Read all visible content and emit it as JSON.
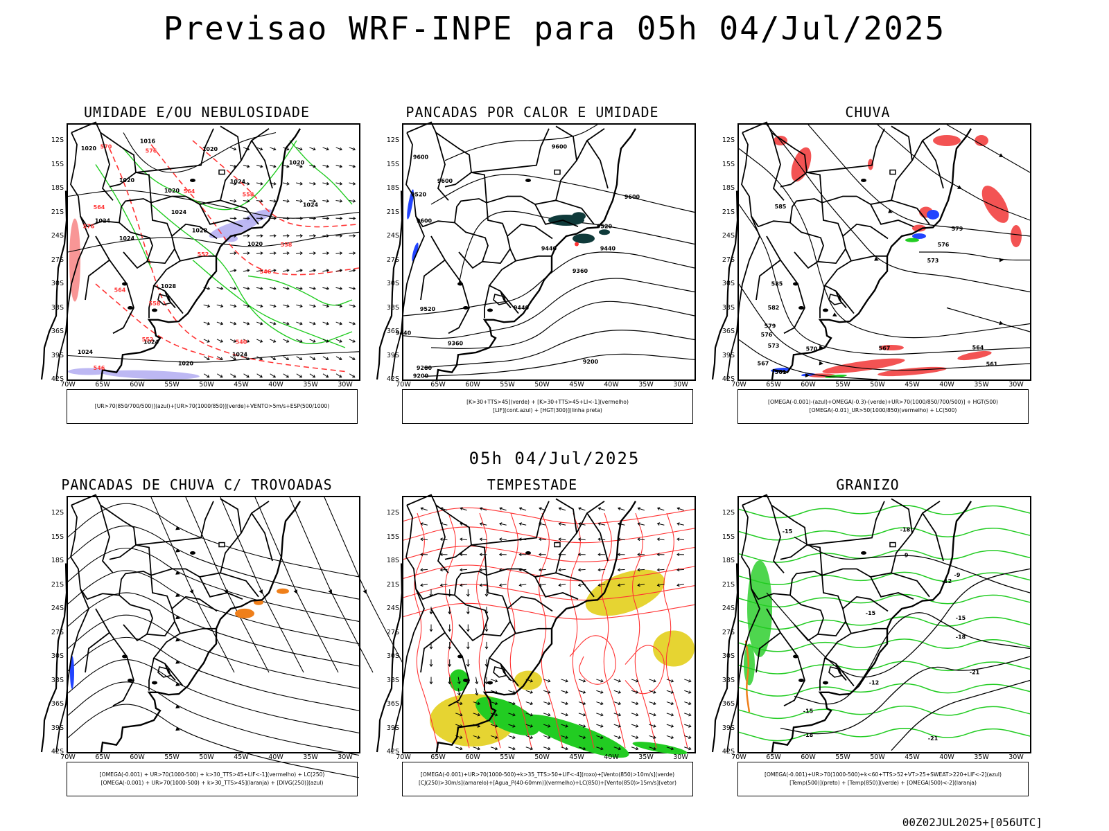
{
  "title": "Previsao WRF-INPE  para 05h 04/Jul/2025",
  "subtitle": "05h 04/Jul/2025",
  "run_stamp": "00Z02JUL2025+[056UTC]",
  "colors": {
    "land": "#000000",
    "contour": "#000000",
    "green": "#22cc22",
    "red": "#ff3333",
    "blue": "#2244ff",
    "lavender": "#b9b4f2",
    "darkteal": "#0f3a3a",
    "orange": "#ef7f1a",
    "yellow": "#e6d432",
    "rain": "#f24040"
  },
  "chart_data": [
    {
      "type": "contour-map",
      "id": "umidade",
      "title": "UMIDADE E/OU NEBULOSIDADE",
      "lat_ticks": [
        "12S",
        "15S",
        "18S",
        "21S",
        "24S",
        "27S",
        "30S",
        "33S",
        "36S",
        "39S",
        "42S"
      ],
      "lon_ticks": [
        "70W",
        "65W",
        "60W",
        "55W",
        "50W",
        "45W",
        "40W",
        "35W",
        "30W"
      ],
      "legend": [
        "[UR>70(850/700/500)](azul)+[UR>70(1000/850)](verde)+VENTO>5m/s+ESP(500/1000)"
      ],
      "contour_labels": [
        {
          "text": "1020",
          "lon": -67,
          "lat": -13.2
        },
        {
          "text": "1016",
          "lon": -58.5,
          "lat": -12.3
        },
        {
          "text": "1020",
          "lon": -49.5,
          "lat": -13.3
        },
        {
          "text": "1020",
          "lon": -37,
          "lat": -15
        },
        {
          "text": "1020",
          "lon": -61.5,
          "lat": -17.2
        },
        {
          "text": "1024",
          "lon": -45.5,
          "lat": -17.4
        },
        {
          "text": "1020",
          "lon": -55,
          "lat": -18.5
        },
        {
          "text": "1024",
          "lon": -65,
          "lat": -22.3
        },
        {
          "text": "1024",
          "lon": -54,
          "lat": -21.2
        },
        {
          "text": "1024",
          "lon": -61.5,
          "lat": -24.5
        },
        {
          "text": "1028",
          "lon": -51,
          "lat": -23.5
        },
        {
          "text": "1020",
          "lon": -43,
          "lat": -25.2
        },
        {
          "text": "1024",
          "lon": -35,
          "lat": -20.3
        },
        {
          "text": "1028",
          "lon": -55.5,
          "lat": -30.5
        },
        {
          "text": "1024",
          "lon": -58,
          "lat": -37.5
        },
        {
          "text": "1024",
          "lon": -67.5,
          "lat": -38.8
        },
        {
          "text": "1020",
          "lon": -53,
          "lat": -40.2
        },
        {
          "text": "1024",
          "lon": -45.2,
          "lat": -39.1
        },
        {
          "text": "570",
          "lon": -64.5,
          "lat": -13.0
        },
        {
          "text": "576",
          "lon": -58,
          "lat": -13.5
        },
        {
          "text": "564",
          "lon": -65.5,
          "lat": -20.6
        },
        {
          "text": "576",
          "lon": -67,
          "lat": -23
        },
        {
          "text": "564",
          "lon": -52.5,
          "lat": -18.6
        },
        {
          "text": "558",
          "lon": -44,
          "lat": -19
        },
        {
          "text": "552",
          "lon": -50.5,
          "lat": -26.5
        },
        {
          "text": "558",
          "lon": -38.5,
          "lat": -25.3
        },
        {
          "text": "546",
          "lon": -41.5,
          "lat": -28.7
        },
        {
          "text": "564",
          "lon": -62.5,
          "lat": -31
        },
        {
          "text": "558",
          "lon": -57.5,
          "lat": -32.7
        },
        {
          "text": "552",
          "lon": -58.5,
          "lat": -37.2
        },
        {
          "text": "540",
          "lon": -45,
          "lat": -37.5
        },
        {
          "text": "546",
          "lon": -65.5,
          "lat": -40.8
        }
      ]
    },
    {
      "type": "contour-map",
      "id": "pancadas-calor",
      "title": "PANCADAS POR CALOR E UMIDADE",
      "lat_ticks": [
        "12S",
        "15S",
        "18S",
        "21S",
        "24S",
        "27S",
        "30S",
        "33S",
        "36S",
        "39S",
        "42S"
      ],
      "lon_ticks": [
        "70W",
        "65W",
        "60W",
        "55W",
        "50W",
        "45W",
        "40W",
        "35W",
        "30W"
      ],
      "legend": [
        "[K>30+TTS>45](verde) + [K>30+TTS>45+LI<-1](vermelho)",
        "[LIF](cont.azul) + [HGT(300)](linha preta)"
      ],
      "contour_labels": [
        {
          "text": "9600",
          "lon": -67.5,
          "lat": -14.3
        },
        {
          "text": "9600",
          "lon": -47.5,
          "lat": -13
        },
        {
          "text": "9600",
          "lon": -64,
          "lat": -17.3
        },
        {
          "text": "9520",
          "lon": -67.8,
          "lat": -19
        },
        {
          "text": "9600",
          "lon": -37,
          "lat": -19.3
        },
        {
          "text": "9600",
          "lon": -67,
          "lat": -22.3
        },
        {
          "text": "9520",
          "lon": -41,
          "lat": -23
        },
        {
          "text": "9440",
          "lon": -49,
          "lat": -25.8
        },
        {
          "text": "9440",
          "lon": -40.5,
          "lat": -25.8
        },
        {
          "text": "9360",
          "lon": -44.5,
          "lat": -28.6
        },
        {
          "text": "9520",
          "lon": -66.5,
          "lat": -33.4
        },
        {
          "text": "9440",
          "lon": -53,
          "lat": -33.2
        },
        {
          "text": "9440",
          "lon": -70,
          "lat": -36.4
        },
        {
          "text": "9360",
          "lon": -62.5,
          "lat": -37.7
        },
        {
          "text": "9280",
          "lon": -67,
          "lat": -40.8
        },
        {
          "text": "9200",
          "lon": -67.5,
          "lat": -41.8
        },
        {
          "text": "9200",
          "lon": -43,
          "lat": -40
        }
      ]
    },
    {
      "type": "contour-map",
      "id": "chuva",
      "title": "CHUVA",
      "lat_ticks": [
        "12S",
        "15S",
        "18S",
        "21S",
        "24S",
        "27S",
        "30S",
        "33S",
        "36S",
        "39S",
        "42S"
      ],
      "lon_ticks": [
        "70W",
        "65W",
        "60W",
        "55W",
        "50W",
        "45W",
        "40W",
        "35W",
        "30W"
      ],
      "legend": [
        "[OMEGA(-0.001)-(azul)+OMEGA(-0.3)-(verde)+UR>70(1000/850/700/500)] + HGT(500)",
        "[OMEGA(-0.01)_UR>50(1000/850)(vermelho) + LC(500)"
      ],
      "contour_labels": [
        {
          "text": "585",
          "lon": -64,
          "lat": -20.5
        },
        {
          "text": "579",
          "lon": -38.5,
          "lat": -23.3
        },
        {
          "text": "576",
          "lon": -40.5,
          "lat": -25.3
        },
        {
          "text": "573",
          "lon": -42,
          "lat": -27.3
        },
        {
          "text": "585",
          "lon": -64.5,
          "lat": -30.2
        },
        {
          "text": "582",
          "lon": -65,
          "lat": -33.2
        },
        {
          "text": "579",
          "lon": -65.5,
          "lat": -35.5
        },
        {
          "text": "576",
          "lon": -66,
          "lat": -36.6
        },
        {
          "text": "573",
          "lon": -65,
          "lat": -38
        },
        {
          "text": "570",
          "lon": -59.5,
          "lat": -38.4
        },
        {
          "text": "567",
          "lon": -66.5,
          "lat": -40.2
        },
        {
          "text": "564",
          "lon": -35.5,
          "lat": -38.2
        },
        {
          "text": "561",
          "lon": -64,
          "lat": -41.3
        },
        {
          "text": "561",
          "lon": -33.5,
          "lat": -40.3
        },
        {
          "text": "567",
          "lon": -49,
          "lat": -38.3
        }
      ]
    },
    {
      "type": "contour-map",
      "id": "pancadas-trovoadas",
      "title": "PANCADAS DE CHUVA C/ TROVOADAS",
      "lat_ticks": [
        "12S",
        "15S",
        "18S",
        "21S",
        "24S",
        "27S",
        "30S",
        "33S",
        "36S",
        "39S",
        "42S"
      ],
      "lon_ticks": [
        "70W",
        "65W",
        "60W",
        "55W",
        "50W",
        "45W",
        "40W",
        "35W",
        "30W"
      ],
      "legend": [
        "[OMEGA(-0.001) + UR>70(1000-500) + k>30_TTS>45+LIF<-1](vermelho) + LC(250)",
        "[OMEGA(-0.001) + UR>70(1000-500) + k>30_TTS>45](laranja) + [DIVG(250)](azul)"
      ],
      "contour_labels": []
    },
    {
      "type": "contour-map",
      "id": "tempestade",
      "title": "TEMPESTADE",
      "lat_ticks": [
        "12S",
        "15S",
        "18S",
        "21S",
        "24S",
        "27S",
        "30S",
        "33S",
        "36S",
        "39S",
        "42S"
      ],
      "lon_ticks": [
        "70W",
        "65W",
        "60W",
        "55W",
        "50W",
        "45W",
        "40W",
        "35W",
        "30W"
      ],
      "legend": [
        "[OMEGA(-0.001)+UR>70(1000-500)+k>35_TTS>50+LIF<-4](roxo)+[Vento(850)>10m/s](verde)",
        "[CJ(250)>30m/s](amarelo)+[Agua_P(40-60mm)](vermelho)+LC(850)+[Vento(850)>15m/s](vetor)"
      ],
      "contour_labels": []
    },
    {
      "type": "contour-map",
      "id": "granizo",
      "title": "GRANIZO",
      "lat_ticks": [
        "12S",
        "15S",
        "18S",
        "21S",
        "24S",
        "27S",
        "30S",
        "33S",
        "36S",
        "39S",
        "42S"
      ],
      "lon_ticks": [
        "70W",
        "65W",
        "60W",
        "55W",
        "50W",
        "45W",
        "40W",
        "35W",
        "30W"
      ],
      "legend": [
        "[OMEGA(-0.001)+UR>70(1000-500)+k<60+TTS>52+VT>25+SWEAT>220+LIF<-2](azul)",
        "[Temp(500)](preto) + [Temp(850)](verde) + [OMEGA(500)<-2](laranja)"
      ],
      "contour_labels": [
        {
          "text": "-9",
          "lon": -46,
          "lat": -17.5
        },
        {
          "text": "-9",
          "lon": -38.5,
          "lat": -20
        },
        {
          "text": "-12",
          "lon": -40,
          "lat": -20.8
        },
        {
          "text": "-15",
          "lon": -51,
          "lat": -24.8
        },
        {
          "text": "-15",
          "lon": -38,
          "lat": -25.4
        },
        {
          "text": "-18",
          "lon": -38,
          "lat": -27.8
        },
        {
          "text": "-21",
          "lon": -36,
          "lat": -32.2
        },
        {
          "text": "-12",
          "lon": -50.5,
          "lat": -33.5
        },
        {
          "text": "-15",
          "lon": -60,
          "lat": -37.1
        },
        {
          "text": "-18",
          "lon": -60,
          "lat": -40.1
        },
        {
          "text": "-21",
          "lon": -42,
          "lat": -40.5
        },
        {
          "text": "-15",
          "lon": -63,
          "lat": -14.5
        },
        {
          "text": "-18",
          "lon": -46,
          "lat": -14.3
        }
      ]
    }
  ]
}
